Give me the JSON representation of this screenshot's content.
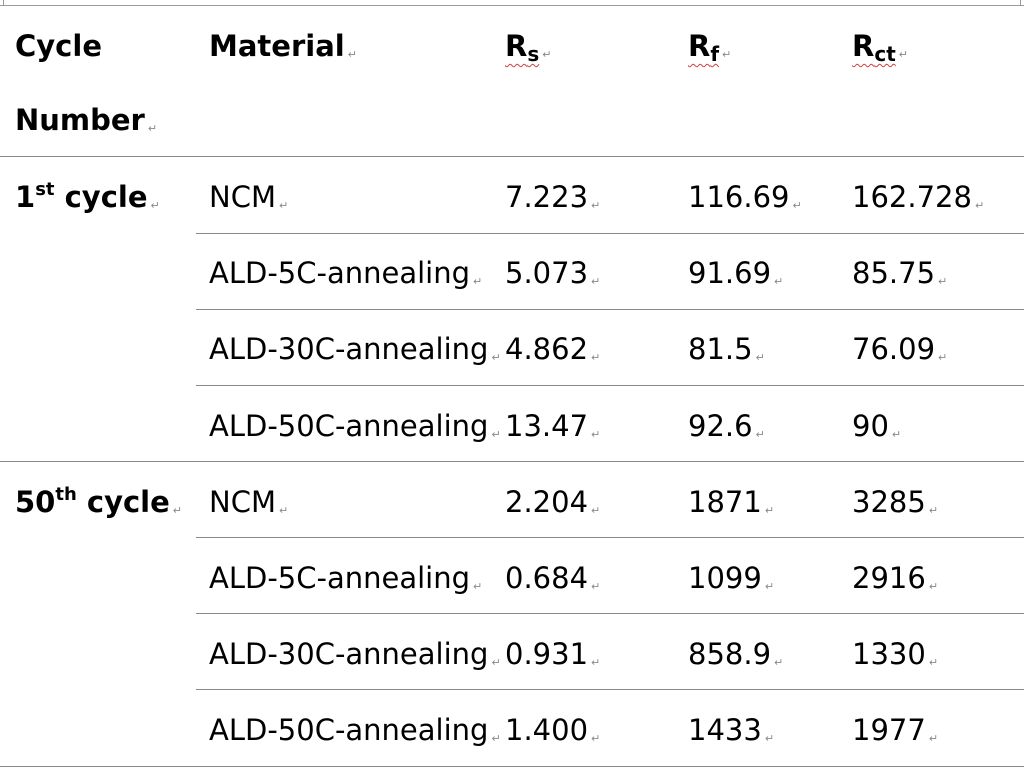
{
  "header": {
    "cycle_line1": "Cycle",
    "cycle_line2": "Number",
    "material": "Material",
    "rs": {
      "base": "R",
      "sub": "s"
    },
    "rf": {
      "base": "R",
      "sub": "f"
    },
    "rct": {
      "base": "R",
      "sub": "ct"
    }
  },
  "groups": [
    {
      "cycle_num": "1",
      "cycle_sup": "st",
      "cycle_word": " cycle",
      "rows": [
        {
          "material": "NCM",
          "rs": "7.223",
          "rf": "116.69",
          "rct": "162.728"
        },
        {
          "material": "ALD-5C-annealing",
          "rs": "5.073",
          "rf": "91.69",
          "rct": "85.75"
        },
        {
          "material": "ALD-30C-annealing",
          "rs": "4.862",
          "rf": "81.5",
          "rct": "76.09"
        },
        {
          "material": "ALD-50C-annealing",
          "rs": "13.47",
          "rf": "92.6",
          "rct": "90"
        }
      ]
    },
    {
      "cycle_num": "50",
      "cycle_sup": "th",
      "cycle_word": " cycle",
      "rows": [
        {
          "material": "NCM",
          "rs": "2.204",
          "rf": "1871",
          "rct": "3285"
        },
        {
          "material": "ALD-5C-annealing",
          "rs": "0.684",
          "rf": "1099",
          "rct": "2916"
        },
        {
          "material": "ALD-30C-annealing",
          "rs": "0.931",
          "rf": "858.9",
          "rct": "1330"
        },
        {
          "material": "ALD-50C-annealing",
          "rs": "1.400",
          "rf": "1433",
          "rct": "1977"
        }
      ]
    }
  ],
  "paragraph_mark": "↵"
}
